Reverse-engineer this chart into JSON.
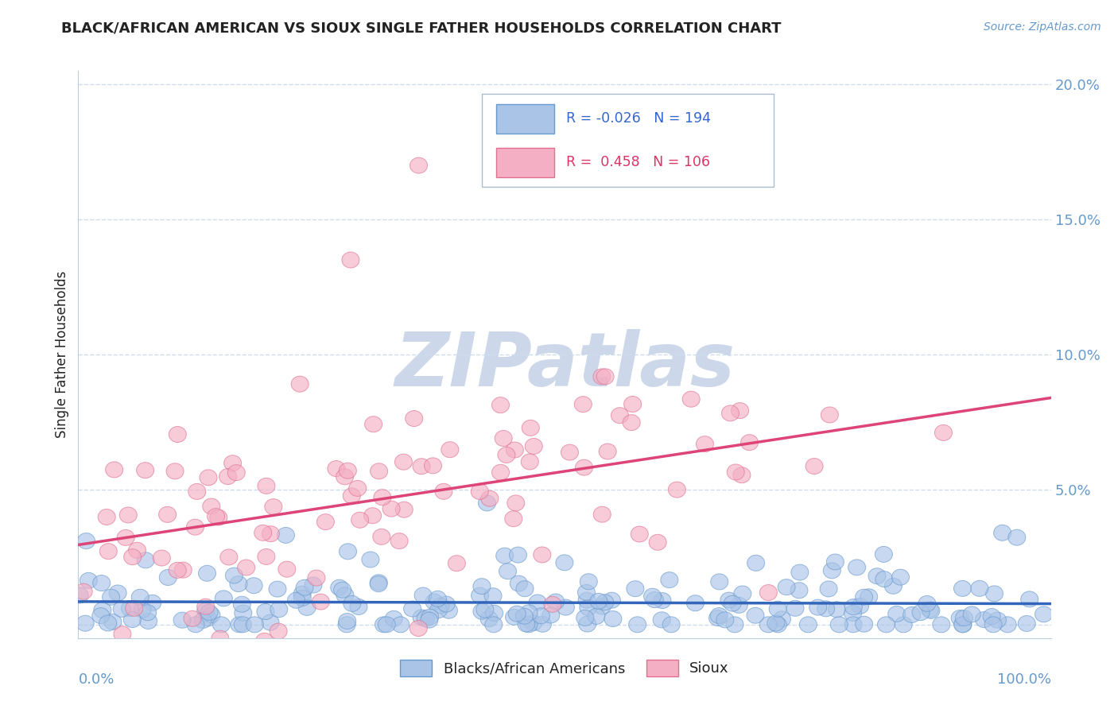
{
  "title": "BLACK/AFRICAN AMERICAN VS SIOUX SINGLE FATHER HOUSEHOLDS CORRELATION CHART",
  "source": "Source: ZipAtlas.com",
  "ylabel": "Single Father Households",
  "blue_R": -0.026,
  "blue_N": 194,
  "pink_R": 0.458,
  "pink_N": 106,
  "blue_color": "#aac4e8",
  "blue_edge": "#6699cc",
  "pink_color": "#f4afc4",
  "pink_edge": "#e07090",
  "blue_line_color": "#3366bb",
  "pink_line_color": "#dd4477",
  "legend_blue_text_color": "#3366cc",
  "legend_pink_text_color": "#dd3366",
  "title_color": "#222222",
  "axis_color": "#6699cc",
  "grid_color": "#ccddee",
  "watermark_color": "#ccd8ea",
  "background_color": "#ffffff",
  "xlim": [
    0,
    1.0
  ],
  "ylim": [
    -0.005,
    0.205
  ],
  "yticks": [
    0.0,
    0.05,
    0.1,
    0.15,
    0.2
  ],
  "ytick_labels": [
    "",
    "5.0%",
    "10.0%",
    "15.0%",
    "20.0%"
  ],
  "blue_seed": 7,
  "pink_seed": 13
}
